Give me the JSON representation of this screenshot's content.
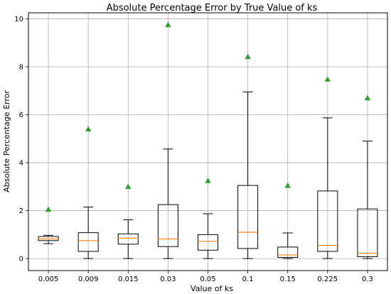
{
  "chart_data": {
    "type": "box",
    "title": "Absolute Percentage Error by True Value of ks",
    "xlabel": "Value of ks",
    "ylabel": "Absolute Percentage Error",
    "ylim": [
      -0.5,
      10.25
    ],
    "yticks": [
      0,
      2,
      4,
      6,
      8,
      10
    ],
    "grid": true,
    "categories": [
      "0.005",
      "0.009",
      "0.015",
      "0.03",
      "0.05",
      "0.1",
      "0.15",
      "0.225",
      "0.3"
    ],
    "boxes": [
      {
        "whisker_low": 0.62,
        "q1": 0.75,
        "median": 0.82,
        "q3": 0.92,
        "whisker_high": 0.97,
        "mean": 2.05
      },
      {
        "whisker_low": 0.0,
        "q1": 0.3,
        "median": 0.75,
        "q3": 1.08,
        "whisker_high": 2.15,
        "mean": 5.4
      },
      {
        "whisker_low": 0.0,
        "q1": 0.6,
        "median": 0.85,
        "q3": 1.03,
        "whisker_high": 1.62,
        "mean": 3.0
      },
      {
        "whisker_low": 0.0,
        "q1": 0.5,
        "median": 0.82,
        "q3": 2.25,
        "whisker_high": 4.57,
        "mean": 9.75
      },
      {
        "whisker_low": 0.0,
        "q1": 0.35,
        "median": 0.72,
        "q3": 1.0,
        "whisker_high": 1.87,
        "mean": 3.25
      },
      {
        "whisker_low": 0.0,
        "q1": 0.42,
        "median": 1.1,
        "q3": 3.05,
        "whisker_high": 6.95,
        "mean": 8.42
      },
      {
        "whisker_low": 0.0,
        "q1": 0.05,
        "median": 0.15,
        "q3": 0.48,
        "whisker_high": 1.07,
        "mean": 3.05
      },
      {
        "whisker_low": 0.0,
        "q1": 0.3,
        "median": 0.55,
        "q3": 2.82,
        "whisker_high": 5.87,
        "mean": 7.48
      },
      {
        "whisker_low": 0.0,
        "q1": 0.08,
        "median": 0.22,
        "q3": 2.07,
        "whisker_high": 4.9,
        "mean": 6.7
      }
    ],
    "colors": {
      "box": "#000000",
      "median": "#ff7f0e",
      "mean_marker": "#2ca02c",
      "grid": "#b0b0b0"
    }
  }
}
